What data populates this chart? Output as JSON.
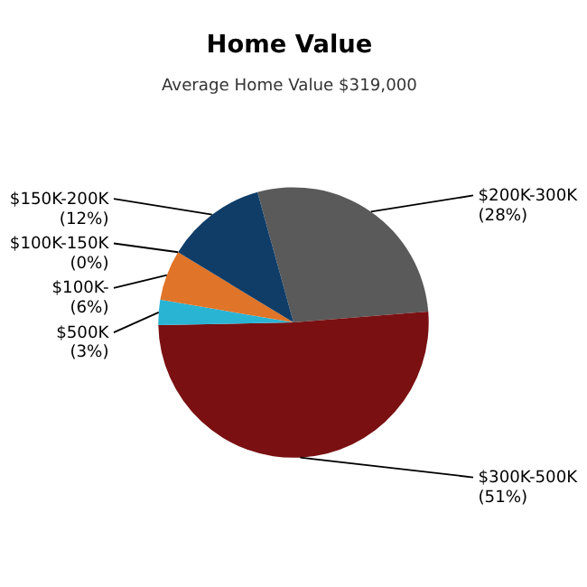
{
  "chart_data": {
    "type": "pie",
    "title": "Home Value",
    "subtitle": "Average Home Value  $319,000",
    "categories": [
      "$200K-300K",
      "$300K-500K",
      "$500K",
      "$100K-",
      "$100K-150K",
      "$150K-200K"
    ],
    "values": [
      28,
      51,
      3,
      6,
      0,
      12
    ],
    "value_labels": [
      "(28%)",
      "(51%)",
      "(3%)",
      "(6%)",
      "(0%)",
      "(12%)"
    ],
    "colors": [
      "#5a5a5a",
      "#7a1012",
      "#2ab4d4",
      "#e07428",
      "#8a8a8a",
      "#0f3d68"
    ]
  }
}
